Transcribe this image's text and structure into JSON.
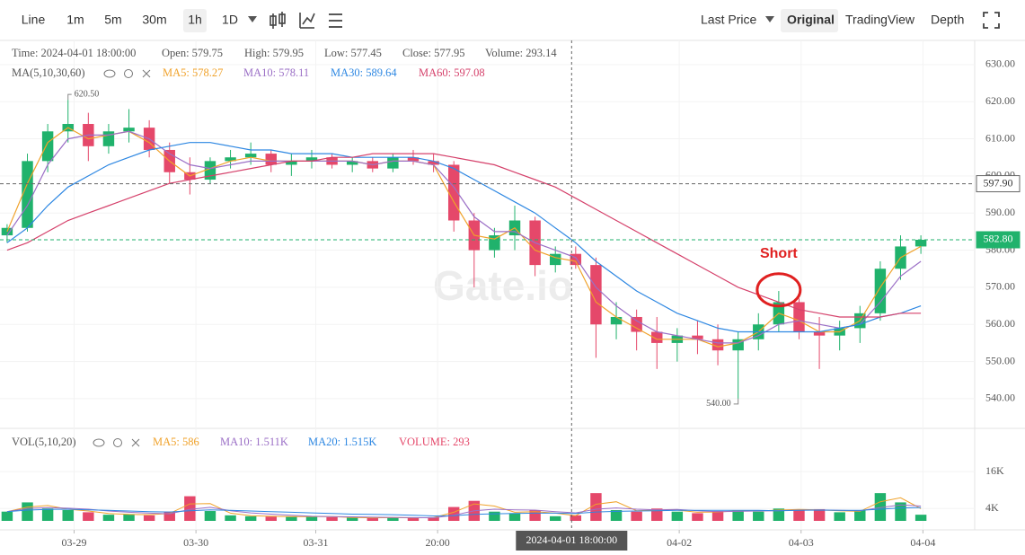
{
  "toolbar": {
    "intervals": [
      "Line",
      "1m",
      "5m",
      "30m",
      "1h",
      "1D"
    ],
    "price_type": "Last Price",
    "views": [
      "Original",
      "TradingView",
      "Depth"
    ]
  },
  "chart_data": {
    "type": "candlestick",
    "watermark": "Gate.io",
    "info": [
      "Time: 2024-04-01 18:00:00",
      "Open: 579.75",
      "High: 579.95",
      "Low: 577.45",
      "Close: 577.95",
      "Volume: 293.14"
    ],
    "ma_title": "MA(5,10,30,60)",
    "vol_title": "VOL(5,10,20)",
    "up_color": "#20b26c",
    "down_color": "#e5486a",
    "grid": true,
    "xlim": [
      -0.35,
      47.65
    ],
    "xticks": [
      {
        "value": 3.3,
        "label": "03-29"
      },
      {
        "value": 9.3,
        "label": "03-30"
      },
      {
        "value": 15.2,
        "label": "03-31"
      },
      {
        "value": 21.2,
        "label": "20:00"
      },
      {
        "value": 33.1,
        "label": "04-02"
      },
      {
        "value": 39.1,
        "label": "04-03"
      },
      {
        "value": 45.1,
        "label": "04-04"
      }
    ],
    "ylim": [
      532,
      636.5
    ],
    "yticks": [
      {
        "value": 540,
        "label": "540.00"
      },
      {
        "value": 550,
        "label": "550.00"
      },
      {
        "value": 560,
        "label": "560.00"
      },
      {
        "value": 570,
        "label": "570.00"
      },
      {
        "value": 580,
        "label": "580.00"
      },
      {
        "value": 590,
        "label": "590.00"
      },
      {
        "value": 600,
        "label": "600.00"
      },
      {
        "value": 610,
        "label": "610.00"
      },
      {
        "value": 620,
        "label": "620.00"
      },
      {
        "value": 630,
        "label": "630.00"
      }
    ],
    "y2lim": [
      0,
      27700
    ],
    "y2ticks": [
      {
        "value": 4000,
        "label": "4K"
      },
      {
        "value": 16000,
        "label": "16K"
      }
    ],
    "open": [
      584,
      586,
      604,
      612,
      614,
      608,
      612,
      613,
      607,
      601,
      599,
      604,
      605,
      606,
      603,
      604,
      605,
      603,
      604,
      602,
      605,
      604,
      603,
      588,
      580,
      584,
      588,
      576,
      579,
      576,
      560,
      562,
      558,
      555,
      557,
      556,
      553,
      556,
      560,
      566,
      558,
      557,
      559,
      563,
      575,
      581
    ],
    "high": [
      587,
      606,
      614,
      620.5,
      617,
      614,
      618,
      615,
      609,
      605,
      605,
      607,
      609,
      607,
      606,
      607,
      606,
      605,
      605,
      606,
      607,
      606,
      604,
      590,
      586,
      592,
      589,
      581,
      581,
      578,
      566,
      564,
      562,
      559,
      561,
      560,
      558,
      563,
      569,
      567,
      562,
      561,
      565,
      577,
      584,
      584
    ],
    "low": [
      582,
      585,
      601,
      609,
      604,
      606,
      609,
      605,
      598,
      595,
      598,
      602,
      603,
      601,
      600,
      602,
      602,
      601,
      601,
      601,
      603,
      601,
      585,
      570,
      578,
      580,
      573,
      574,
      575,
      551,
      556,
      553,
      548,
      550,
      552,
      549,
      540,
      553,
      558,
      556,
      548,
      553,
      555,
      561,
      572,
      579
    ],
    "close": [
      586,
      604,
      612,
      614,
      608,
      612,
      613,
      607,
      601,
      599,
      604,
      605,
      606,
      603,
      604,
      605,
      603,
      604,
      602,
      605,
      604,
      603,
      588,
      580,
      584,
      588,
      576,
      579,
      576,
      560,
      562,
      558,
      555,
      557,
      556,
      553,
      556,
      560,
      566,
      558,
      557,
      559,
      563,
      575,
      581,
      582.8
    ],
    "volume": [
      3000,
      6000,
      4000,
      3500,
      2800,
      2000,
      2200,
      1800,
      3000,
      8000,
      3200,
      1800,
      1500,
      1400,
      1300,
      1500,
      1200,
      1000,
      1000,
      1100,
      900,
      1200,
      4500,
      6500,
      3000,
      2500,
      3500,
      1500,
      1800,
      9000,
      3500,
      3000,
      4000,
      3000,
      2500,
      3200,
      3500,
      3000,
      4000,
      3500,
      3800,
      2800,
      3500,
      9000,
      6000,
      2000
    ],
    "ma_lines": [
      {
        "label": "MA5: 578.27",
        "color": "#f0a22a",
        "values": [
          585,
          598,
          609,
          613,
          610,
          611,
          612,
          609,
          604,
          600,
          602,
          604,
          605,
          604,
          604,
          604,
          604,
          604,
          603,
          604,
          604,
          603,
          593,
          584,
          583,
          586,
          580,
          578,
          577,
          566,
          562,
          559,
          556,
          556,
          556,
          554,
          555,
          558,
          563,
          561,
          558,
          558,
          561,
          570,
          578,
          581
        ]
      },
      {
        "label": "MA10: 578.11",
        "color": "#9b6fc6",
        "values": [
          584,
          592,
          603,
          610,
          611,
          611,
          612,
          610,
          606,
          603,
          602,
          603,
          604,
          604,
          604,
          604,
          604,
          604,
          603,
          604,
          604,
          603,
          597,
          589,
          585,
          585,
          582,
          580,
          578,
          570,
          565,
          561,
          558,
          557,
          556,
          555,
          555,
          557,
          560,
          561,
          560,
          559,
          560,
          566,
          573,
          577
        ]
      },
      {
        "label": "MA30: 589.64",
        "color": "#2d87e2",
        "values": [
          582,
          586,
          592,
          597,
          600,
          603,
          605,
          607,
          608,
          609,
          609,
          608,
          607,
          607,
          606,
          606,
          606,
          605,
          605,
          605,
          605,
          604,
          602,
          599,
          596,
          593,
          590,
          586,
          582,
          577,
          573,
          569,
          566,
          563,
          561,
          559,
          558,
          558,
          558,
          558,
          558,
          559,
          560,
          562,
          563,
          565
        ]
      },
      {
        "label": "MA60: 597.08",
        "color": "#d5416b",
        "values": [
          580,
          582,
          585,
          588,
          590,
          592,
          594,
          596,
          598,
          599,
          600,
          601,
          602,
          603,
          604,
          604,
          605,
          605,
          606,
          606,
          606,
          606,
          605,
          604,
          603,
          601,
          599,
          597,
          594,
          591,
          588,
          585,
          582,
          579,
          576,
          573,
          570,
          568,
          566,
          564,
          563,
          562,
          562,
          562,
          563,
          563
        ]
      }
    ],
    "vol_lines": [
      {
        "label": "MA5: 586",
        "color": "#f0a22a",
        "values": [
          3000,
          4500,
          5000,
          3800,
          3200,
          2400,
          2100,
          2000,
          2400,
          5500,
          5600,
          2500,
          1700,
          1500,
          1400,
          1400,
          1400,
          1100,
          1000,
          1050,
          1000,
          1050,
          2800,
          5500,
          4800,
          2800,
          3000,
          2500,
          1700,
          5400,
          6200,
          3300,
          3500,
          3500,
          2800,
          2900,
          3300,
          3200,
          3500,
          3700,
          3600,
          3300,
          3100,
          6200,
          7500,
          4000
        ]
      },
      {
        "label": "MA10: 1.511K",
        "color": "#9b6fc6",
        "values": [
          3000,
          4000,
          4300,
          4100,
          3800,
          3200,
          2800,
          2500,
          2300,
          3700,
          4400,
          3300,
          2600,
          2200,
          1800,
          1500,
          1400,
          1300,
          1200,
          1150,
          1050,
          1000,
          1800,
          3300,
          3800,
          3600,
          3500,
          3000,
          2600,
          3800,
          4200,
          3800,
          3600,
          3700,
          3300,
          3000,
          3100,
          3200,
          3300,
          3500,
          3600,
          3400,
          3300,
          4300,
          5200,
          4800
        ]
      },
      {
        "label": "MA20: 1.515K",
        "color": "#2d87e2",
        "values": [
          3000,
          3500,
          3700,
          3800,
          3600,
          3400,
          3200,
          3000,
          2900,
          3300,
          3600,
          3400,
          3200,
          3000,
          2800,
          2600,
          2400,
          2200,
          2100,
          2000,
          1800,
          1600,
          1700,
          2100,
          2300,
          2400,
          2500,
          2500,
          2400,
          2900,
          3100,
          3200,
          3300,
          3400,
          3400,
          3400,
          3400,
          3400,
          3300,
          3400,
          3500,
          3400,
          3400,
          3800,
          4200,
          4300
        ]
      }
    ],
    "volume_label": "VOLUME: 293",
    "high_marker": {
      "value": 620.5,
      "label": "620.50"
    },
    "low_marker": {
      "value": 540,
      "label": "540.00"
    },
    "price_lines": [
      {
        "value": 597.9,
        "label": "597.90",
        "color": "#666666"
      },
      {
        "value": 582.8,
        "label": "582.80",
        "color": "#20b26c"
      }
    ],
    "crosshair": {
      "value": 27.8,
      "label": "2024-04-01 18:00:00"
    },
    "annotation": {
      "text": "Short",
      "x": 38,
      "y": 569.3,
      "color": "#e02020"
    }
  }
}
